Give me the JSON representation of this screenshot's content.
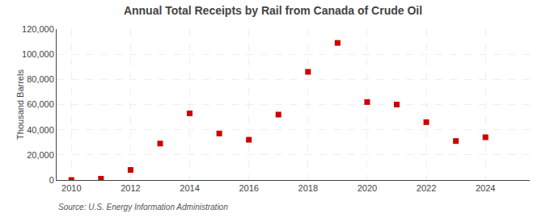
{
  "chart_data": {
    "type": "scatter",
    "title": "Annual Total Receipts by Rail from Canada of Crude Oil",
    "ylabel": "Thousand Barrels",
    "annotations": [
      "Source: U.S. Energy Information Administration"
    ],
    "x": [
      2010,
      2011,
      2012,
      2013,
      2014,
      2015,
      2016,
      2017,
      2018,
      2019,
      2020,
      2021,
      2022,
      2023,
      2024
    ],
    "values": [
      0,
      1000,
      8000,
      29000,
      53000,
      37000,
      32000,
      52000,
      86000,
      109000,
      62000,
      60000,
      46000,
      31000,
      34000
    ],
    "color": "#cc0000",
    "marker": "square",
    "xlim": [
      2009.5,
      2025.5
    ],
    "xticks": [
      2010,
      2012,
      2014,
      2016,
      2018,
      2020,
      2022,
      2024
    ],
    "ylim": [
      0,
      120000
    ],
    "yticks": [
      0,
      {
        "value": 20000,
        "label": "20,000"
      },
      {
        "value": 40000,
        "label": "40,000"
      },
      {
        "value": 60000,
        "label": "60,000"
      },
      {
        "value": 80000,
        "label": "80,000"
      },
      {
        "value": 100000,
        "label": "100,000"
      },
      {
        "value": 120000,
        "label": "120,000"
      }
    ],
    "grid": true
  }
}
